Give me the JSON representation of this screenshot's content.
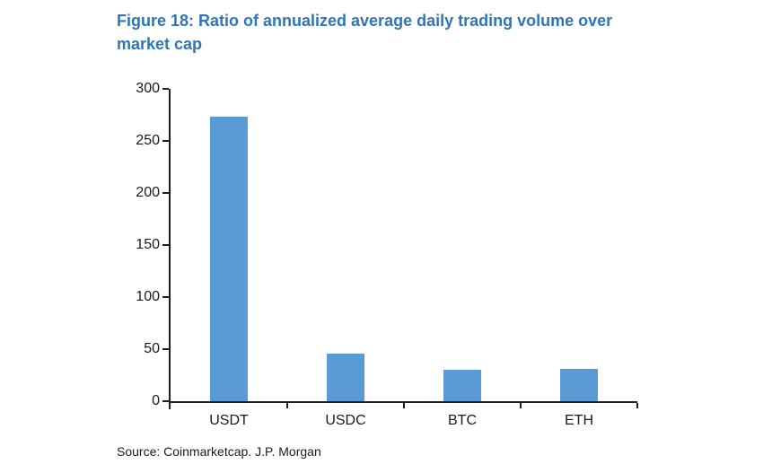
{
  "figure": {
    "title": "Figure 18: Ratio of annualized average daily trading volume over market cap",
    "title_lines": [
      "Figure 18: Ratio of annualized average daily trading volume over",
      "market cap"
    ],
    "title_color": "#2f75b8",
    "source": "Source: Coinmarketcap. J.P. Morgan"
  },
  "chart_data": {
    "type": "bar",
    "title": "Figure 18: Ratio of annualized average daily trading volume over market cap",
    "categories": [
      "USDT",
      "USDC",
      "BTC",
      "ETH"
    ],
    "values": [
      273,
      46,
      30,
      31
    ],
    "xlabel": "",
    "ylabel": "",
    "ylim": [
      0,
      300
    ],
    "yticks": [
      0,
      50,
      100,
      150,
      200,
      250,
      300
    ],
    "grid": false,
    "legend": false,
    "bar_color": "#5b9bd5",
    "axis_color": "#1f1f1f",
    "source": "Source: Coinmarketcap. J.P. Morgan"
  }
}
